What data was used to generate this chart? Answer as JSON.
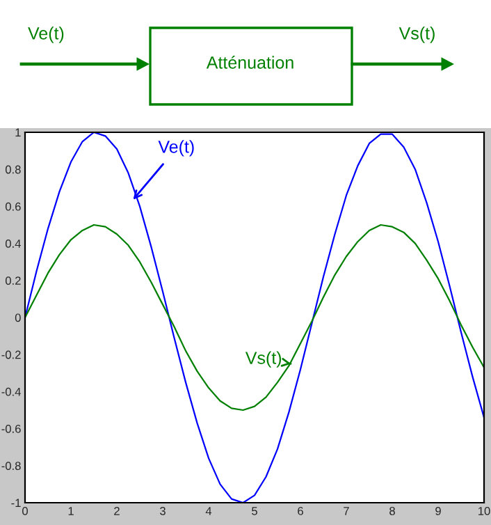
{
  "chart_data": {
    "type": "line",
    "x": [
      0,
      0.25,
      0.5,
      0.75,
      1,
      1.25,
      1.5,
      1.75,
      2,
      2.25,
      2.5,
      2.75,
      3,
      3.25,
      3.5,
      3.75,
      4,
      4.25,
      4.5,
      4.75,
      5,
      5.25,
      5.5,
      5.75,
      6,
      6.25,
      6.5,
      6.75,
      7,
      7.25,
      7.5,
      7.75,
      8,
      8.25,
      8.5,
      8.75,
      9,
      9.25,
      9.5,
      9.75,
      10
    ],
    "series": [
      {
        "color": "#0000ff",
        "values": [
          0,
          0.25,
          0.48,
          0.68,
          0.84,
          0.95,
          1.0,
          0.98,
          0.91,
          0.78,
          0.6,
          0.38,
          0.14,
          -0.11,
          -0.35,
          -0.57,
          -0.76,
          -0.9,
          -0.98,
          -1.0,
          -0.96,
          -0.86,
          -0.71,
          -0.51,
          -0.28,
          -0.03,
          0.22,
          0.45,
          0.66,
          0.82,
          0.94,
          0.99,
          0.99,
          0.92,
          0.8,
          0.62,
          0.41,
          0.17,
          -0.08,
          -0.32,
          -0.54
        ]
      },
      {
        "color": "#008000",
        "values": [
          0,
          0.12,
          0.24,
          0.34,
          0.42,
          0.47,
          0.5,
          0.49,
          0.45,
          0.39,
          0.3,
          0.19,
          0.07,
          -0.05,
          -0.18,
          -0.29,
          -0.38,
          -0.45,
          -0.49,
          -0.5,
          -0.48,
          -0.43,
          -0.35,
          -0.26,
          -0.14,
          -0.02,
          0.11,
          0.23,
          0.33,
          0.41,
          0.47,
          0.5,
          0.49,
          0.46,
          0.4,
          0.31,
          0.21,
          0.09,
          -0.04,
          -0.16,
          -0.27
        ]
      }
    ],
    "xlim": [
      0,
      10
    ],
    "xticks": [
      0,
      1,
      2,
      3,
      4,
      5,
      6,
      7,
      8,
      9,
      10
    ],
    "ylim": [
      -1,
      1
    ],
    "yticks": [
      -1,
      -0.8,
      -0.6,
      -0.4,
      -0.2,
      0,
      0.2,
      0.4,
      0.6,
      0.8,
      1
    ],
    "grid": false,
    "marker": "none",
    "line_style": "solid",
    "annotations": [
      {
        "text": "Ve(t)",
        "x": 2.3,
        "y": 0.62
      },
      {
        "text": "Vs(t)",
        "x": 5.8,
        "y": -0.25
      },
      "Ve(t)",
      "Atténuation",
      "Vs(t)"
    ]
  }
}
